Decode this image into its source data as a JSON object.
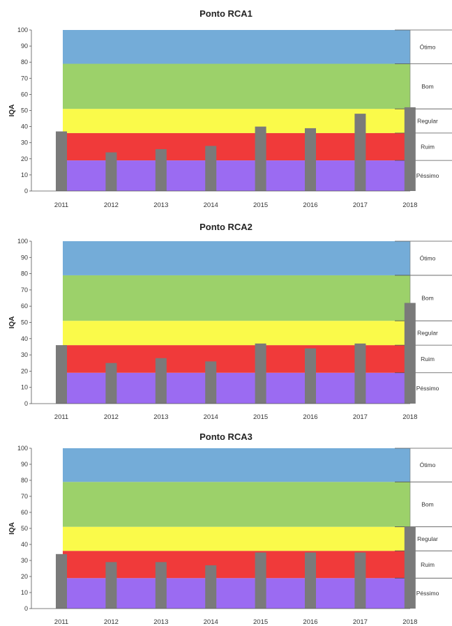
{
  "chart_data": [
    {
      "type": "bar",
      "title": "Ponto RCA1",
      "ylabel": "IQA",
      "ylim": [
        0,
        100
      ],
      "yticks": [
        "0",
        "10",
        "20",
        "30",
        "40",
        "50",
        "60",
        "70",
        "80",
        "90",
        "100"
      ],
      "categories": [
        "2011",
        "2012",
        "2013",
        "2014",
        "2015",
        "2016",
        "2017",
        "2018"
      ],
      "values": [
        37,
        24,
        26,
        28,
        40,
        39,
        48,
        52
      ],
      "bar_color": "#7a7a7a",
      "bands": [
        {
          "label": "Péssimo",
          "from": 0,
          "to": 19,
          "color": "#9b6bf2"
        },
        {
          "label": "Ruim",
          "from": 19,
          "to": 36,
          "color": "#f03a3a"
        },
        {
          "label": "Regular",
          "from": 36,
          "to": 51,
          "color": "#fafa4a"
        },
        {
          "label": "Bom",
          "from": 51,
          "to": 79,
          "color": "#9cd16a"
        },
        {
          "label": "Ótimo",
          "from": 79,
          "to": 100,
          "color": "#74acd8"
        }
      ]
    },
    {
      "type": "bar",
      "title": "Ponto RCA2",
      "ylabel": "IQA",
      "ylim": [
        0,
        100
      ],
      "yticks": [
        "0",
        "10",
        "20",
        "30",
        "40",
        "50",
        "60",
        "70",
        "80",
        "90",
        "100"
      ],
      "categories": [
        "2011",
        "2012",
        "2013",
        "2014",
        "2015",
        "2016",
        "2017",
        "2018"
      ],
      "values": [
        36,
        25,
        28,
        26,
        37,
        34,
        37,
        62
      ],
      "bar_color": "#7a7a7a",
      "bands": [
        {
          "label": "Péssimo",
          "from": 0,
          "to": 19,
          "color": "#9b6bf2"
        },
        {
          "label": "Ruim",
          "from": 19,
          "to": 36,
          "color": "#f03a3a"
        },
        {
          "label": "Regular",
          "from": 36,
          "to": 51,
          "color": "#fafa4a"
        },
        {
          "label": "Bom",
          "from": 51,
          "to": 79,
          "color": "#9cd16a"
        },
        {
          "label": "Ótimo",
          "from": 79,
          "to": 100,
          "color": "#74acd8"
        }
      ]
    },
    {
      "type": "bar",
      "title": "Ponto RCA3",
      "ylabel": "IQA",
      "ylim": [
        0,
        100
      ],
      "yticks": [
        "0",
        "10",
        "20",
        "30",
        "40",
        "50",
        "60",
        "70",
        "80",
        "90",
        "100"
      ],
      "categories": [
        "2011",
        "2012",
        "2013",
        "2014",
        "2015",
        "2016",
        "2017",
        "2018"
      ],
      "values": [
        34,
        29,
        29,
        27,
        35,
        35,
        35,
        51
      ],
      "bar_color": "#7a7a7a",
      "bands": [
        {
          "label": "Péssimo",
          "from": 0,
          "to": 19,
          "color": "#9b6bf2"
        },
        {
          "label": "Ruim",
          "from": 19,
          "to": 36,
          "color": "#f03a3a"
        },
        {
          "label": "Regular",
          "from": 36,
          "to": 51,
          "color": "#fafa4a"
        },
        {
          "label": "Bom",
          "from": 51,
          "to": 79,
          "color": "#9cd16a"
        },
        {
          "label": "Ótimo",
          "from": 79,
          "to": 100,
          "color": "#74acd8"
        }
      ]
    }
  ]
}
